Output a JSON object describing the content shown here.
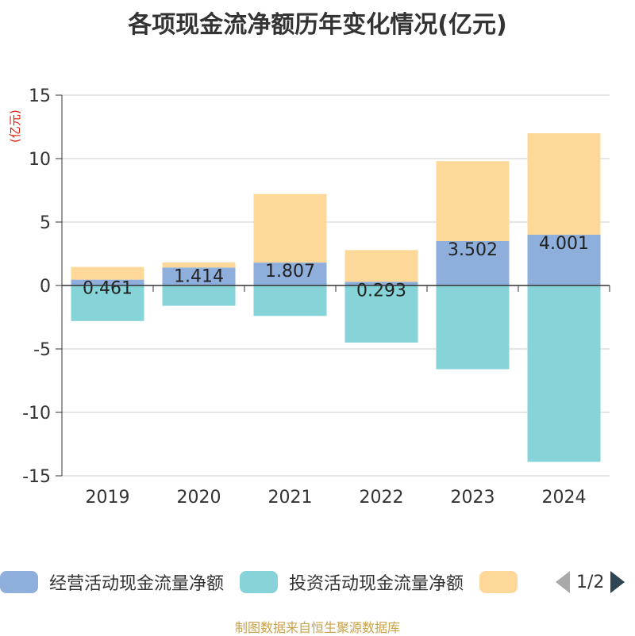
{
  "chart_data": {
    "type": "bar",
    "stacked": true,
    "title": "各项现金流净额历年变化情况(亿元)",
    "ylabel": "(亿元)",
    "ylim": [
      -15,
      15
    ],
    "yticks": [
      15,
      10,
      5,
      0,
      -5,
      -10,
      -15
    ],
    "grid": true,
    "categories": [
      "2019",
      "2020",
      "2021",
      "2022",
      "2023",
      "2024"
    ],
    "series": [
      {
        "name": "经营活动现金流量净额",
        "color": "#8eaedb",
        "values": [
          0.461,
          1.414,
          1.807,
          0.293,
          3.502,
          4.001
        ],
        "labels": [
          "0.461",
          "1.414",
          "1.807",
          "0.293",
          "3.502",
          "4.001"
        ]
      },
      {
        "name": "投资活动现金流量净额",
        "color": "#86d4d8",
        "values": [
          -2.8,
          -1.6,
          -2.4,
          -4.5,
          -6.6,
          -13.9
        ]
      },
      {
        "name": "",
        "color": "#fdd899",
        "values": [
          1.0,
          0.4,
          5.4,
          2.5,
          6.3,
          8.0
        ]
      }
    ],
    "legend_position": "bottom"
  },
  "legend": {
    "items": [
      {
        "label": "经营活动现金流量净额",
        "color": "#8eaedb"
      },
      {
        "label": "投资活动现金流量净额",
        "color": "#86d4d8"
      },
      {
        "label": "",
        "color": "#fdd899"
      }
    ],
    "page": "1/2"
  },
  "footer": "制图数据来自恒生聚源数据库"
}
